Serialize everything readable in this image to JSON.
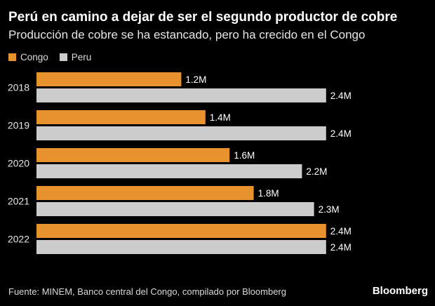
{
  "title": "Perú en camino a dejar de ser el segundo productor de cobre",
  "subtitle": "Producción de cobre se ha estancado, pero ha crecido en el Congo",
  "source": "Fuente: MINEM, Banco central del Congo, compilado por Bloomberg",
  "brand": "Bloomberg",
  "colors": {
    "congo": "#e8922e",
    "peru": "#cccccc",
    "background": "#000000"
  },
  "chart_data": {
    "type": "bar",
    "orientation": "horizontal",
    "categories": [
      "2018",
      "2019",
      "2020",
      "2021",
      "2022"
    ],
    "series": [
      {
        "name": "Congo",
        "values": [
          1.2,
          1.4,
          1.6,
          1.8,
          2.4
        ],
        "labels": [
          "1.2M",
          "1.4M",
          "1.6M",
          "1.8M",
          "2.4M"
        ]
      },
      {
        "name": "Peru",
        "values": [
          2.4,
          2.4,
          2.2,
          2.3,
          2.4
        ],
        "labels": [
          "2.4M",
          "2.4M",
          "2.2M",
          "2.3M",
          "2.4M"
        ]
      }
    ],
    "legend": "top-left",
    "grid": false
  }
}
